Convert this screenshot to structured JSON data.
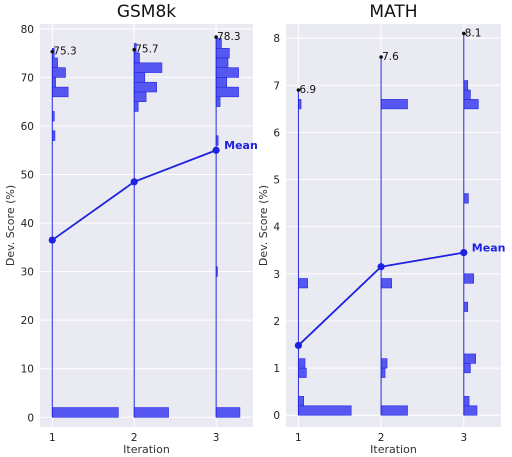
{
  "chart_data": [
    {
      "type": "line",
      "title": "GSM8k",
      "xlabel": "Iteration",
      "ylabel": "Dev. Score (%)",
      "x": [
        1,
        2,
        3
      ],
      "xlim": [
        0.85,
        3.45
      ],
      "ylim": [
        -2,
        81
      ],
      "yticks": [
        0,
        10,
        20,
        30,
        40,
        50,
        60,
        70,
        80
      ],
      "series": [
        {
          "name": "Mean",
          "values": [
            36.5,
            48.5,
            55.0
          ]
        }
      ],
      "max_labels": [
        "75.3",
        "75.7",
        "78.3"
      ],
      "max_values": [
        75.3,
        75.7,
        78.3
      ],
      "distributions": [
        {
          "x": 1,
          "bins": [
            {
              "lo": 0,
              "hi": 2,
              "w": 1.0
            },
            {
              "lo": 57,
              "hi": 59,
              "w": 0.04
            },
            {
              "lo": 61,
              "hi": 63,
              "w": 0.03
            },
            {
              "lo": 66,
              "hi": 68,
              "w": 0.24
            },
            {
              "lo": 68,
              "hi": 70,
              "w": 0.05
            },
            {
              "lo": 70,
              "hi": 72,
              "w": 0.2
            },
            {
              "lo": 72,
              "hi": 74,
              "w": 0.08
            },
            {
              "lo": 74,
              "hi": 76,
              "w": 0.03
            }
          ]
        },
        {
          "x": 2,
          "bins": [
            {
              "lo": 0,
              "hi": 2,
              "w": 0.52
            },
            {
              "lo": 63,
              "hi": 65,
              "w": 0.06
            },
            {
              "lo": 65,
              "hi": 67,
              "w": 0.18
            },
            {
              "lo": 67,
              "hi": 69,
              "w": 0.34
            },
            {
              "lo": 69,
              "hi": 71,
              "w": 0.16
            },
            {
              "lo": 71,
              "hi": 73,
              "w": 0.42
            },
            {
              "lo": 73,
              "hi": 75,
              "w": 0.08
            },
            {
              "lo": 75,
              "hi": 77,
              "w": 0.03
            }
          ]
        },
        {
          "x": 3,
          "bins": [
            {
              "lo": 0,
              "hi": 2,
              "w": 0.36
            },
            {
              "lo": 29,
              "hi": 31,
              "w": 0.02
            },
            {
              "lo": 56,
              "hi": 58,
              "w": 0.03
            },
            {
              "lo": 64,
              "hi": 66,
              "w": 0.06
            },
            {
              "lo": 66,
              "hi": 68,
              "w": 0.34
            },
            {
              "lo": 68,
              "hi": 70,
              "w": 0.16
            },
            {
              "lo": 70,
              "hi": 72,
              "w": 0.34
            },
            {
              "lo": 72,
              "hi": 74,
              "w": 0.18
            },
            {
              "lo": 74,
              "hi": 76,
              "w": 0.2
            },
            {
              "lo": 76,
              "hi": 78,
              "w": 0.08
            }
          ]
        }
      ]
    },
    {
      "type": "line",
      "title": "MATH",
      "xlabel": "Iteration",
      "ylabel": "Dev. Score (%)",
      "x": [
        1,
        2,
        3
      ],
      "xlim": [
        0.85,
        3.45
      ],
      "ylim": [
        -0.25,
        8.3
      ],
      "yticks": [
        0,
        1,
        2,
        3,
        4,
        5,
        6,
        7,
        8
      ],
      "series": [
        {
          "name": "Mean",
          "values": [
            1.48,
            3.15,
            3.45
          ]
        }
      ],
      "max_labels": [
        "6.9",
        "7.6",
        "8.1"
      ],
      "max_values": [
        6.9,
        7.6,
        8.1
      ],
      "distributions": [
        {
          "x": 1,
          "bins": [
            {
              "lo": 0,
              "hi": 0.2,
              "w": 0.8
            },
            {
              "lo": 0.2,
              "hi": 0.4,
              "w": 0.08
            },
            {
              "lo": 0.8,
              "hi": 1.0,
              "w": 0.12
            },
            {
              "lo": 1.0,
              "hi": 1.2,
              "w": 0.1
            },
            {
              "lo": 2.7,
              "hi": 2.9,
              "w": 0.14
            },
            {
              "lo": 6.5,
              "hi": 6.7,
              "w": 0.04
            }
          ]
        },
        {
          "x": 2,
          "bins": [
            {
              "lo": 0,
              "hi": 0.2,
              "w": 0.4
            },
            {
              "lo": 0.8,
              "hi": 1.0,
              "w": 0.06
            },
            {
              "lo": 1.0,
              "hi": 1.2,
              "w": 0.09
            },
            {
              "lo": 2.7,
              "hi": 2.9,
              "w": 0.16
            },
            {
              "lo": 6.5,
              "hi": 6.7,
              "w": 0.4
            }
          ]
        },
        {
          "x": 3,
          "bins": [
            {
              "lo": 0,
              "hi": 0.2,
              "w": 0.2
            },
            {
              "lo": 0.2,
              "hi": 0.4,
              "w": 0.08
            },
            {
              "lo": 0.9,
              "hi": 1.1,
              "w": 0.1
            },
            {
              "lo": 1.1,
              "hi": 1.3,
              "w": 0.18
            },
            {
              "lo": 2.2,
              "hi": 2.4,
              "w": 0.06
            },
            {
              "lo": 2.8,
              "hi": 3.0,
              "w": 0.15
            },
            {
              "lo": 4.5,
              "hi": 4.7,
              "w": 0.07
            },
            {
              "lo": 6.5,
              "hi": 6.7,
              "w": 0.22
            },
            {
              "lo": 6.7,
              "hi": 6.9,
              "w": 0.1
            },
            {
              "lo": 6.9,
              "hi": 7.1,
              "w": 0.06
            }
          ]
        }
      ]
    }
  ],
  "colors": {
    "panel_bg": "#eaeaf2",
    "grid": "#ffffff",
    "line": "#1f22e0",
    "bar": "#5557f0",
    "bar_edge": "#2427e4"
  }
}
